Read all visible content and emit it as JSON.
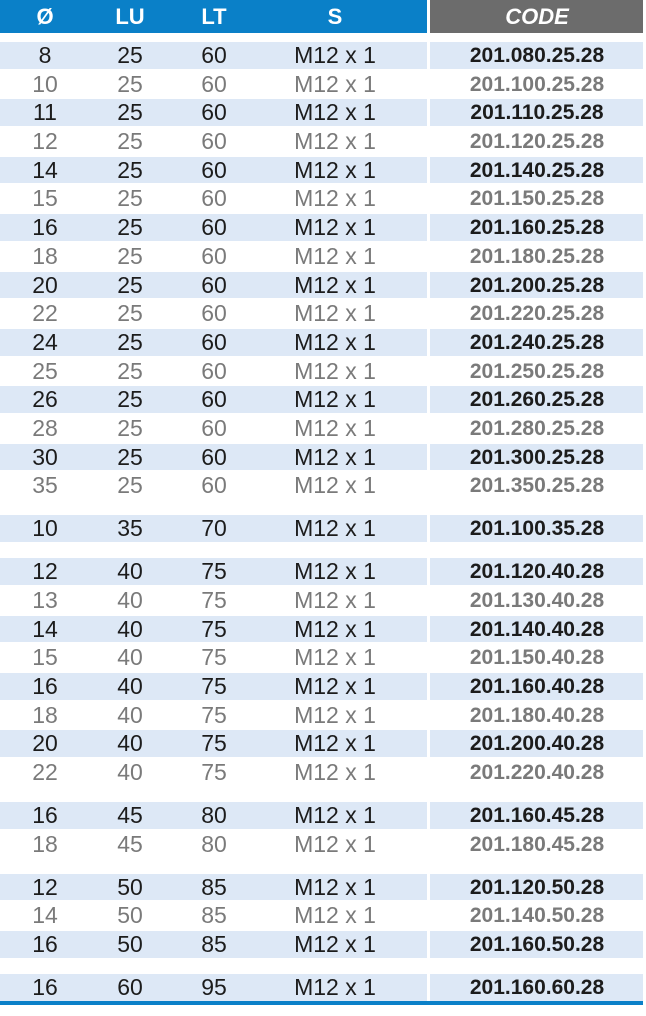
{
  "header": {
    "d": "Ø",
    "lu": "LU",
    "lt": "LT",
    "s": "S",
    "code": "CODE"
  },
  "colors": {
    "header_blue": "#0a80c8",
    "header_gray": "#6c6c6c",
    "row_shade": "#dde8f6"
  },
  "groups": [
    {
      "rows": [
        [
          "8",
          "25",
          "60",
          "M12 x 1",
          "201.080.25.28"
        ],
        [
          "10",
          "25",
          "60",
          "M12 x 1",
          "201.100.25.28"
        ],
        [
          "11",
          "25",
          "60",
          "M12 x 1",
          "201.110.25.28"
        ],
        [
          "12",
          "25",
          "60",
          "M12 x 1",
          "201.120.25.28"
        ],
        [
          "14",
          "25",
          "60",
          "M12 x 1",
          "201.140.25.28"
        ],
        [
          "15",
          "25",
          "60",
          "M12 x 1",
          "201.150.25.28"
        ],
        [
          "16",
          "25",
          "60",
          "M12 x 1",
          "201.160.25.28"
        ],
        [
          "18",
          "25",
          "60",
          "M12 x 1",
          "201.180.25.28"
        ],
        [
          "20",
          "25",
          "60",
          "M12 x 1",
          "201.200.25.28"
        ],
        [
          "22",
          "25",
          "60",
          "M12 x 1",
          "201.220.25.28"
        ],
        [
          "24",
          "25",
          "60",
          "M12 x 1",
          "201.240.25.28"
        ],
        [
          "25",
          "25",
          "60",
          "M12 x 1",
          "201.250.25.28"
        ],
        [
          "26",
          "25",
          "60",
          "M12 x 1",
          "201.260.25.28"
        ],
        [
          "28",
          "25",
          "60",
          "M12 x 1",
          "201.280.25.28"
        ],
        [
          "30",
          "25",
          "60",
          "M12 x 1",
          "201.300.25.28"
        ],
        [
          "35",
          "25",
          "60",
          "M12 x 1",
          "201.350.25.28"
        ]
      ]
    },
    {
      "rows": [
        [
          "10",
          "35",
          "70",
          "M12 x 1",
          "201.100.35.28"
        ]
      ]
    },
    {
      "rows": [
        [
          "12",
          "40",
          "75",
          "M12 x 1",
          "201.120.40.28"
        ],
        [
          "13",
          "40",
          "75",
          "M12 x 1",
          "201.130.40.28"
        ],
        [
          "14",
          "40",
          "75",
          "M12 x 1",
          "201.140.40.28"
        ],
        [
          "15",
          "40",
          "75",
          "M12 x 1",
          "201.150.40.28"
        ],
        [
          "16",
          "40",
          "75",
          "M12 x 1",
          "201.160.40.28"
        ],
        [
          "18",
          "40",
          "75",
          "M12 x 1",
          "201.180.40.28"
        ],
        [
          "20",
          "40",
          "75",
          "M12 x 1",
          "201.200.40.28"
        ],
        [
          "22",
          "40",
          "75",
          "M12 x 1",
          "201.220.40.28"
        ]
      ]
    },
    {
      "rows": [
        [
          "16",
          "45",
          "80",
          "M12 x 1",
          "201.160.45.28"
        ],
        [
          "18",
          "45",
          "80",
          "M12 x 1",
          "201.180.45.28"
        ]
      ]
    },
    {
      "rows": [
        [
          "12",
          "50",
          "85",
          "M12 x 1",
          "201.120.50.28"
        ],
        [
          "14",
          "50",
          "85",
          "M12 x 1",
          "201.140.50.28"
        ],
        [
          "16",
          "50",
          "85",
          "M12 x 1",
          "201.160.50.28"
        ]
      ]
    },
    {
      "rows": [
        [
          "16",
          "60",
          "95",
          "M12 x 1",
          "201.160.60.28"
        ]
      ]
    }
  ]
}
